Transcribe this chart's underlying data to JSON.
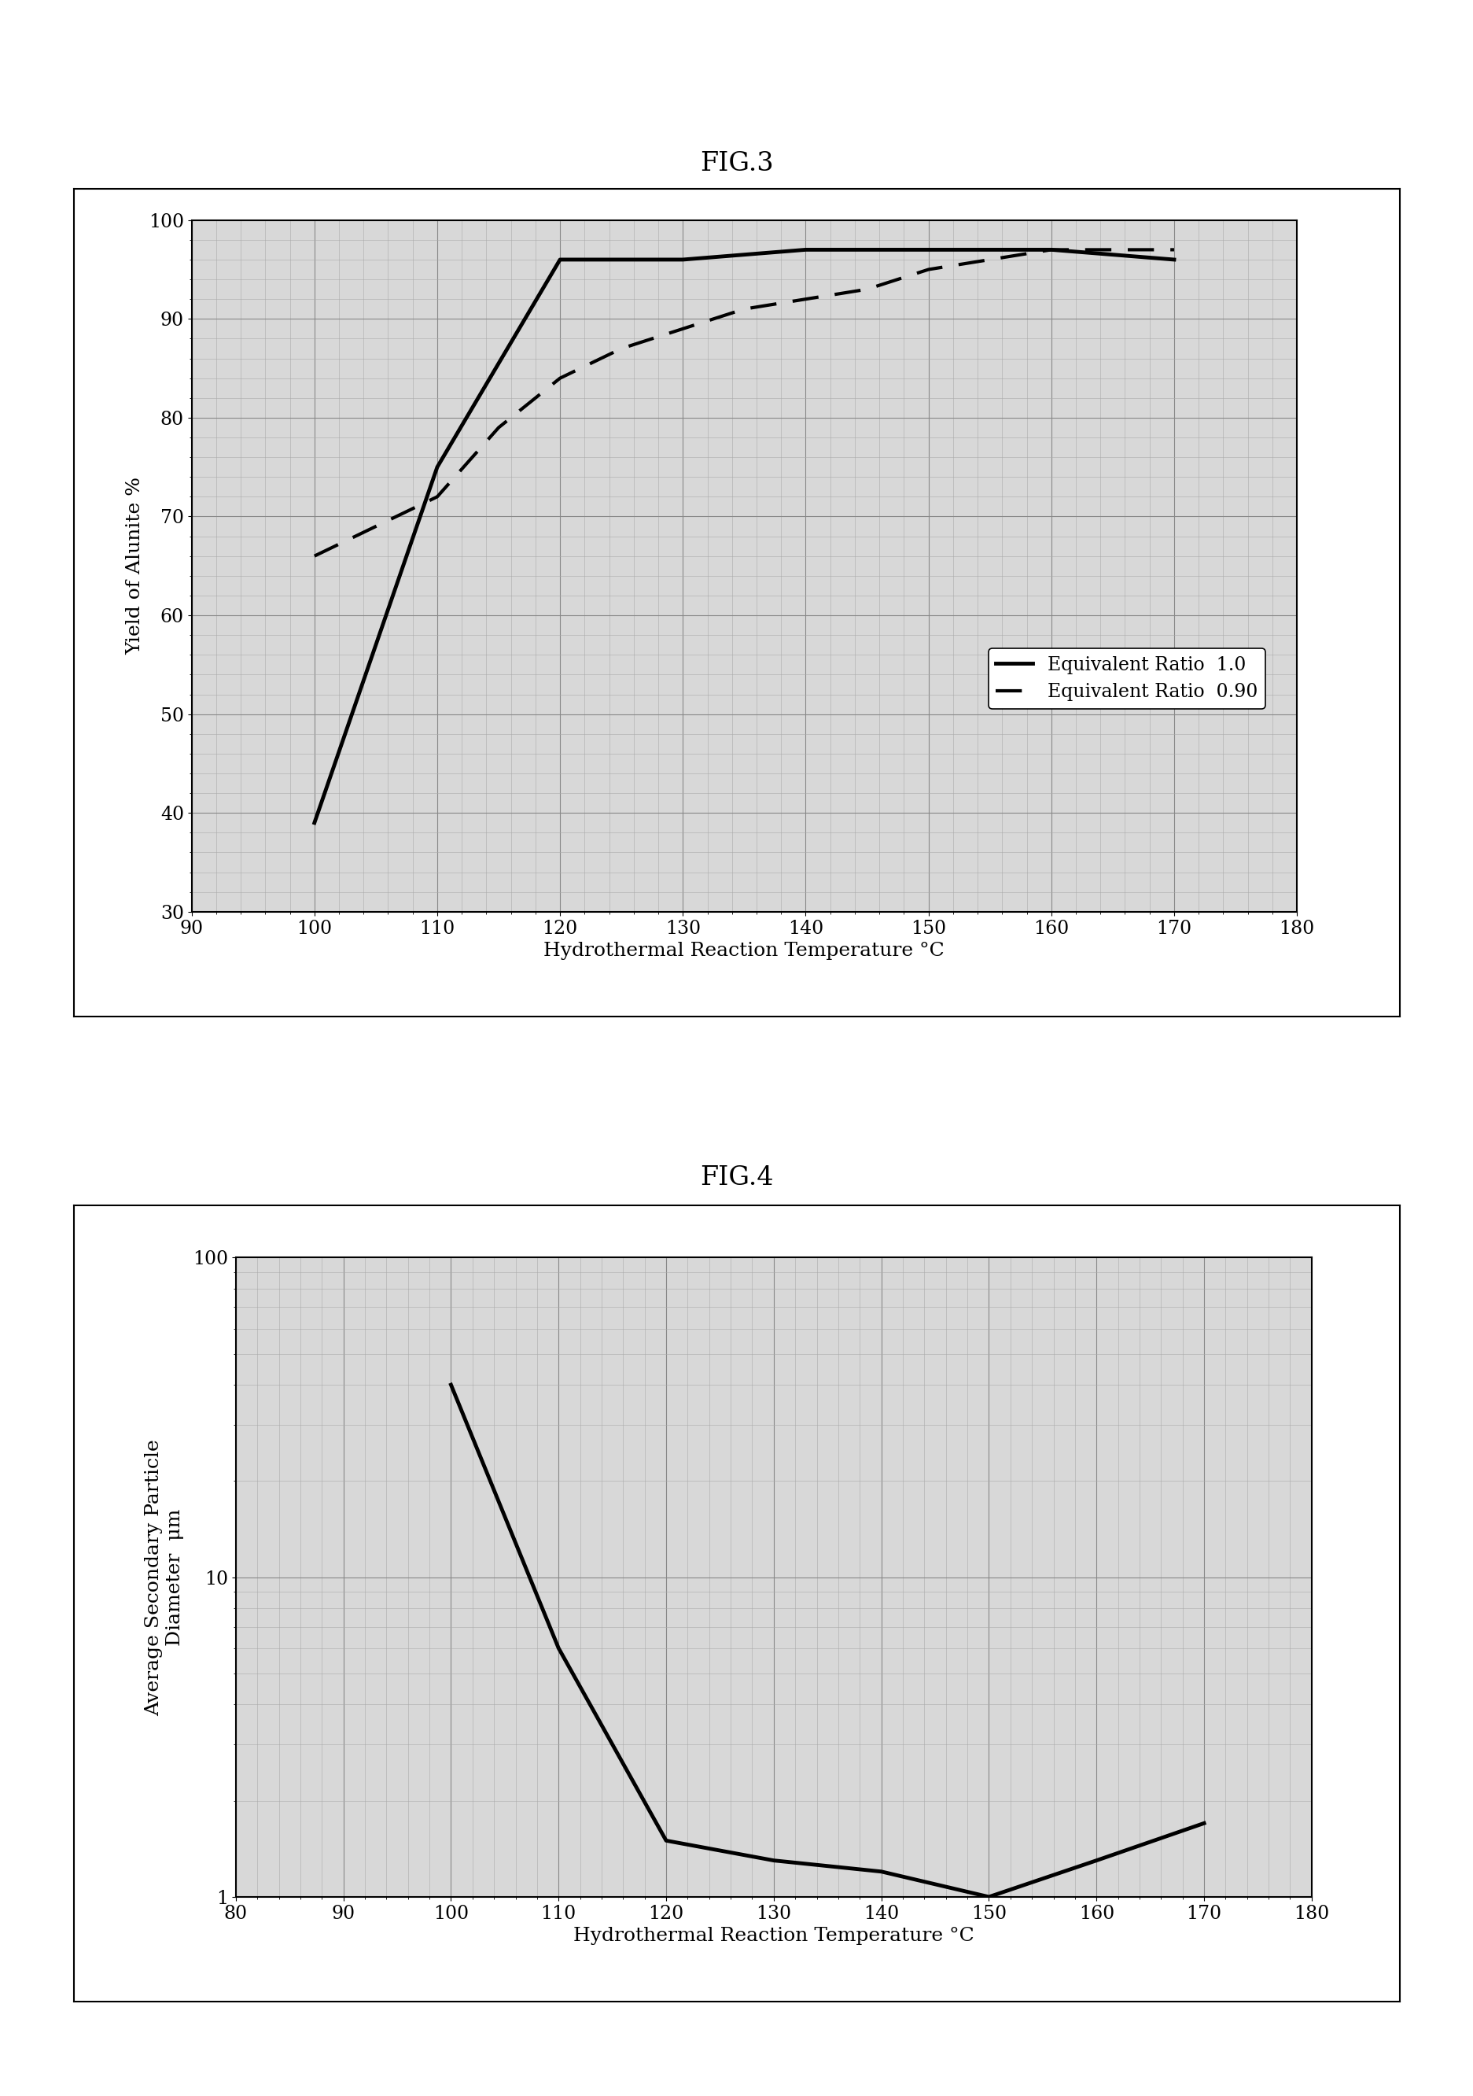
{
  "fig3_title": "FIG.3",
  "fig4_title": "FIG.4",
  "fig3_solid_x": [
    100,
    110,
    120,
    130,
    140,
    150,
    160,
    170
  ],
  "fig3_solid_y": [
    39,
    75,
    96,
    96,
    97,
    97,
    97,
    96
  ],
  "fig3_dashed_x": [
    100,
    105,
    110,
    115,
    120,
    125,
    130,
    135,
    140,
    145,
    150,
    155,
    160,
    165,
    170
  ],
  "fig3_dashed_y": [
    66,
    69,
    72,
    79,
    84,
    87,
    89,
    91,
    92,
    93,
    95,
    96,
    97,
    97,
    97
  ],
  "fig3_xlabel": "Hydrothermal Reaction Temperature °C",
  "fig3_ylabel": "Yield of Alunite %",
  "fig3_xlim": [
    90,
    180
  ],
  "fig3_ylim": [
    30,
    100
  ],
  "fig3_xticks": [
    90,
    100,
    110,
    120,
    130,
    140,
    150,
    160,
    170,
    180
  ],
  "fig3_yticks": [
    30,
    40,
    50,
    60,
    70,
    80,
    90,
    100
  ],
  "fig3_legend1": "Equivalent Ratio  1.0",
  "fig3_legend2": "Equivalent Ratio  0.90",
  "fig4_x": [
    100,
    110,
    120,
    130,
    140,
    150,
    160,
    170
  ],
  "fig4_y": [
    40,
    6.0,
    1.5,
    1.3,
    1.2,
    1.0,
    1.3,
    1.7
  ],
  "fig4_xlabel": "Hydrothermal Reaction Temperature °C",
  "fig4_ylabel1": "Average Secondary Particle",
  "fig4_ylabel2": "Diameter  μm",
  "fig4_xlim": [
    80,
    180
  ],
  "fig4_xticks": [
    80,
    90,
    100,
    110,
    120,
    130,
    140,
    150,
    160,
    170,
    180
  ],
  "line_color": "#000000",
  "bg_color": "#ffffff",
  "plot_bg_color": "#d8d8d8",
  "title_fontsize": 24,
  "label_fontsize": 18,
  "tick_fontsize": 17,
  "legend_fontsize": 17,
  "line_width": 3.0
}
